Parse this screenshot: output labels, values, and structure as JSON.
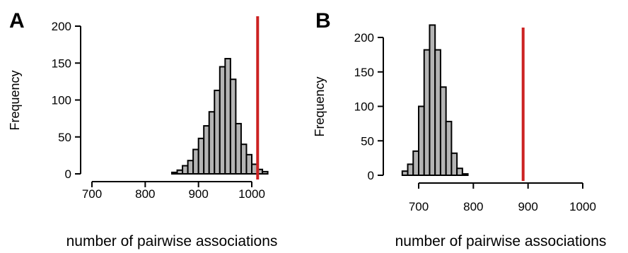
{
  "chart_data": [
    {
      "type": "bar",
      "panel_label": "A",
      "xlabel": "number of pairwise associations",
      "ylabel": "Frequency",
      "xlim": [
        700,
        1000
      ],
      "ylim": [
        0,
        200
      ],
      "xticks": [
        700,
        800,
        900,
        1000
      ],
      "yticks": [
        0,
        50,
        100,
        150,
        200
      ],
      "bin_width": 10,
      "bins_start": [
        850,
        860,
        870,
        880,
        890,
        900,
        910,
        920,
        930,
        940,
        950,
        960,
        970,
        980,
        990,
        1000,
        1010,
        1020
      ],
      "values": [
        2,
        5,
        11,
        18,
        33,
        48,
        65,
        84,
        113,
        145,
        156,
        128,
        68,
        40,
        26,
        13,
        6,
        3
      ],
      "observed_value": 1011,
      "observed_color": "#cc2222",
      "bar_color": "#b4b4b4",
      "grid": false
    },
    {
      "type": "bar",
      "panel_label": "B",
      "xlabel": "number of pairwise associations",
      "ylabel": "Frequency",
      "xlim": [
        700,
        1000
      ],
      "ylim": [
        0,
        200
      ],
      "xticks": [
        700,
        800,
        900,
        1000
      ],
      "yticks": [
        0,
        50,
        100,
        150,
        200
      ],
      "bin_width": 10,
      "bins_start": [
        670,
        680,
        690,
        700,
        710,
        720,
        730,
        740,
        750,
        760,
        770,
        780
      ],
      "values": [
        6,
        16,
        35,
        100,
        182,
        218,
        182,
        128,
        78,
        32,
        10,
        2
      ],
      "observed_value": 891,
      "observed_color": "#cc2222",
      "bar_color": "#b4b4b4",
      "grid": false
    }
  ]
}
